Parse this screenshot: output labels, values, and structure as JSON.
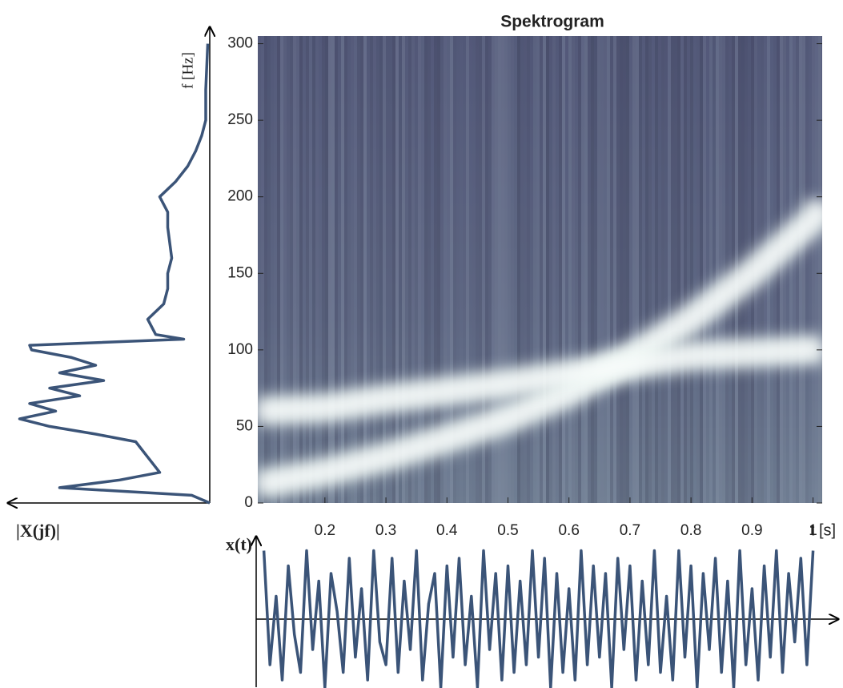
{
  "chart_data": [
    {
      "type": "spectrogram",
      "title": "Spektrogram",
      "xlim": [
        0.09,
        1.015
      ],
      "ylim": [
        0,
        305
      ],
      "xticks": [
        0.2,
        0.3,
        0.4,
        0.5,
        0.6,
        0.7,
        0.8,
        0.9,
        1
      ],
      "yticks": [
        0,
        50,
        100,
        150,
        200,
        250,
        300
      ],
      "xlabel": "t [s]",
      "series": [
        {
          "color": "#eef8f4",
          "x": [
            0.09,
            0.2,
            0.3,
            0.4,
            0.5,
            0.6,
            0.7,
            0.8,
            0.9,
            1.0,
            1.015
          ],
          "values": [
            12,
            20,
            30,
            42,
            55,
            72,
            95,
            120,
            150,
            185,
            195
          ]
        },
        {
          "color": "#eef8f4",
          "x": [
            0.09,
            0.2,
            0.3,
            0.4,
            0.5,
            0.6,
            0.7,
            0.8,
            0.9,
            1.0,
            1.015
          ],
          "values": [
            60,
            62,
            68,
            73,
            78,
            84,
            90,
            96,
            98,
            100,
            101
          ]
        }
      ]
    },
    {
      "type": "spectrum",
      "xlabel": "|X(jf)|",
      "ylabel": "f [Hz]",
      "color": "#3b5478",
      "xlim": [
        0,
        1
      ],
      "ylim": [
        0,
        305
      ],
      "x": [
        0,
        5,
        10,
        15,
        20,
        30,
        40,
        45,
        50,
        55,
        60,
        65,
        70,
        75,
        80,
        85,
        90,
        95,
        100,
        103,
        107,
        110,
        120,
        130,
        140,
        150,
        160,
        170,
        180,
        190,
        200,
        210,
        220,
        230,
        240,
        250,
        270,
        300
      ],
      "values": [
        0,
        0.09,
        0.75,
        0.45,
        0.25,
        0.31,
        0.37,
        0.57,
        0.8,
        0.95,
        0.77,
        0.9,
        0.65,
        0.8,
        0.53,
        0.75,
        0.57,
        0.69,
        0.89,
        0.9,
        0.13,
        0.27,
        0.31,
        0.23,
        0.21,
        0.21,
        0.19,
        0.2,
        0.21,
        0.21,
        0.25,
        0.17,
        0.11,
        0.07,
        0.04,
        0.02,
        0.02,
        0.01
      ]
    },
    {
      "type": "line",
      "ylabel": "x(t)",
      "color": "#3b5478",
      "xlim": [
        0.09,
        1.015
      ],
      "ylim": [
        -1,
        1
      ],
      "x": [
        0.1,
        0.11,
        0.12,
        0.13,
        0.14,
        0.15,
        0.16,
        0.17,
        0.18,
        0.19,
        0.2,
        0.21,
        0.22,
        0.23,
        0.24,
        0.25,
        0.26,
        0.27,
        0.28,
        0.29,
        0.3,
        0.31,
        0.32,
        0.33,
        0.34,
        0.35,
        0.36,
        0.37,
        0.38,
        0.39,
        0.4,
        0.41,
        0.42,
        0.43,
        0.44,
        0.45,
        0.46,
        0.47,
        0.48,
        0.49,
        0.5,
        0.51,
        0.52,
        0.53,
        0.54,
        0.55,
        0.56,
        0.57,
        0.58,
        0.59,
        0.6,
        0.61,
        0.62,
        0.63,
        0.64,
        0.65,
        0.66,
        0.67,
        0.68,
        0.69,
        0.7,
        0.71,
        0.72,
        0.73,
        0.74,
        0.75,
        0.76,
        0.77,
        0.78,
        0.79,
        0.8,
        0.81,
        0.82,
        0.83,
        0.84,
        0.85,
        0.86,
        0.87,
        0.88,
        0.89,
        0.9,
        0.91,
        0.92,
        0.93,
        0.94,
        0.95,
        0.96,
        0.97,
        0.98,
        0.99,
        1.0
      ],
      "values": [
        0.9,
        -0.6,
        0.3,
        -0.8,
        0.7,
        -0.2,
        -0.7,
        0.9,
        -0.4,
        0.5,
        -0.9,
        0.6,
        0.1,
        -0.7,
        0.8,
        -0.5,
        0.4,
        -0.8,
        0.9,
        -0.3,
        -0.6,
        0.8,
        -0.7,
        0.5,
        -0.4,
        0.9,
        -0.8,
        0.2,
        0.6,
        -0.9,
        0.7,
        -0.5,
        0.8,
        -0.6,
        0.3,
        -0.9,
        0.9,
        -0.4,
        0.6,
        -0.8,
        0.7,
        -0.7,
        0.5,
        -0.6,
        0.9,
        -0.5,
        0.8,
        -0.9,
        0.6,
        -0.7,
        0.4,
        -0.8,
        0.9,
        -0.6,
        0.7,
        -0.5,
        0.6,
        -0.9,
        0.8,
        -0.4,
        0.7,
        -0.8,
        0.5,
        -0.6,
        0.9,
        -0.7,
        0.3,
        -0.8,
        0.9,
        -0.5,
        0.7,
        -0.9,
        0.6,
        -0.4,
        0.8,
        -0.7,
        0.5,
        -0.9,
        0.9,
        -0.6,
        0.4,
        -0.8,
        0.7,
        -0.5,
        0.9,
        -0.7,
        0.6,
        -0.3,
        0.8,
        -0.6,
        0.9
      ]
    }
  ]
}
